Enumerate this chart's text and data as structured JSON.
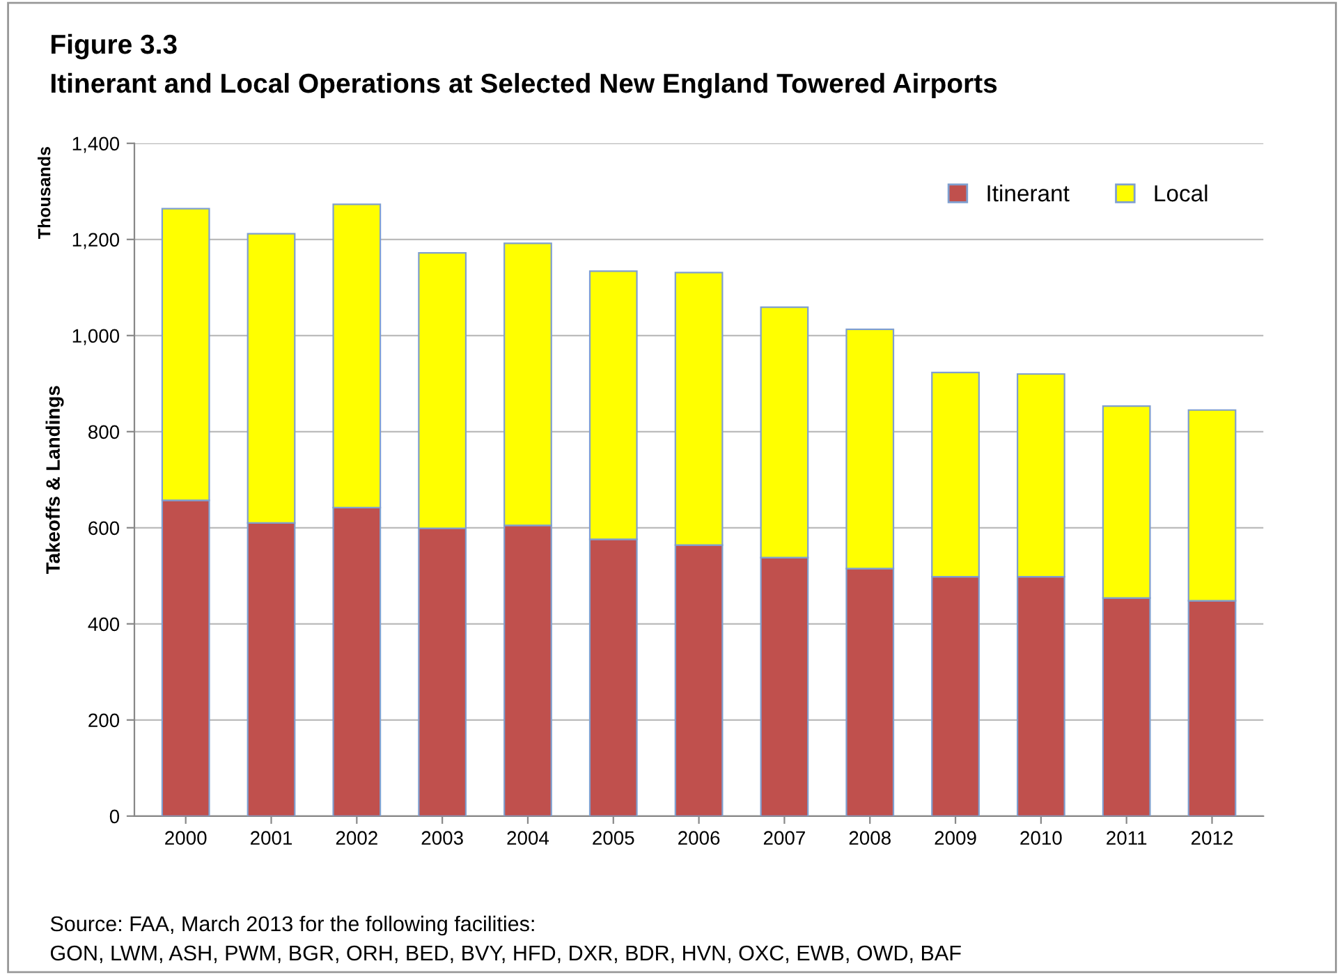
{
  "chart_data": {
    "type": "bar",
    "stacked": true,
    "title": "Figure 3.3",
    "subtitle": "Itinerant and Local Operations at Selected New England Towered Airports",
    "ylabel": "Takeoffs & Landings",
    "categories": [
      "2000",
      "2001",
      "2002",
      "2003",
      "2004",
      "2005",
      "2006",
      "2007",
      "2008",
      "2009",
      "2010",
      "2011",
      "2012"
    ],
    "series": [
      {
        "name": "Itinerant",
        "color": "#c0504d",
        "values": [
          657,
          610,
          642,
          599,
          605,
          576,
          564,
          538,
          515,
          498,
          498,
          454,
          448
        ]
      },
      {
        "name": "Local",
        "color": "#ffff00",
        "values": [
          607,
          602,
          631,
          573,
          587,
          558,
          567,
          521,
          498,
          425,
          422,
          399,
          397
        ]
      }
    ],
    "ylim": [
      0,
      1400
    ],
    "yticks": [
      {
        "value": 0,
        "label": "0"
      },
      {
        "value": 200,
        "label": "200"
      },
      {
        "value": 400,
        "label": "400"
      },
      {
        "value": 600,
        "label": "600"
      },
      {
        "value": 800,
        "label": "800"
      },
      {
        "value": 1000,
        "label": "1,000"
      },
      {
        "value": 1200,
        "label": "1,200"
      },
      {
        "value": 1400,
        "label": "1,400"
      }
    ],
    "grid": "y",
    "legend": "top right",
    "annotations": [
      "Thousands",
      "Source: FAA, March 2013 for the following facilities:",
      "GON, LWM, ASH, PWM, BGR, ORH, BED, BVY, HFD, DXR, BDR, HVN, OXC, EWB, OWD, BAF"
    ]
  }
}
